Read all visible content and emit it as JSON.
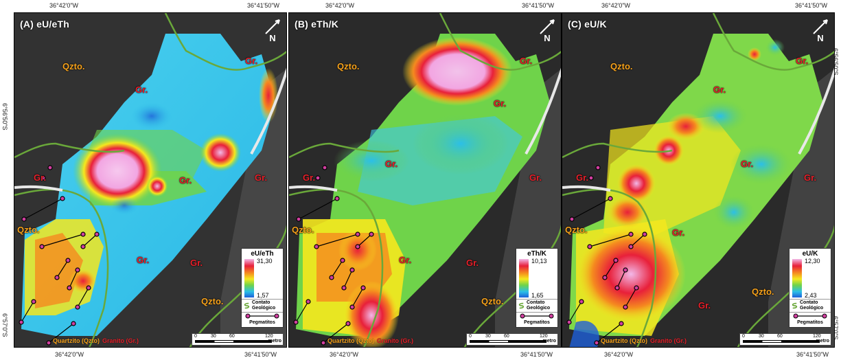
{
  "coords": {
    "top": [
      "36°42'0\"W",
      "36°41'50\"W",
      "36°42'0\"W",
      "36°41'50\"W",
      "36°42'0\"W",
      "36°41'50\"W"
    ],
    "bottom": [
      "36°42'0\"W",
      "36°41'50\"W",
      "36°42'0\"W",
      "36°41'50\"W",
      "36°42'0\"W",
      "36°41'50\"W"
    ],
    "left_upper": "6°56'50\"S",
    "left_lower": "6°57'0\"S",
    "right_upper": "6°56'50\"S",
    "right_lower": "6°57'0\"S"
  },
  "panels": [
    {
      "title": "(A)  eU/eTh",
      "legend_title": "eU/eTh",
      "legend_max": "31,30",
      "legend_min": "1,57"
    },
    {
      "title": "(B)  eTh/K",
      "legend_title": "eTh/K",
      "legend_max": "10,13",
      "legend_min": "1,65"
    },
    {
      "title": "(C)  eU/K",
      "legend_title": "eU/K",
      "legend_max": "12,30",
      "legend_min": "2,43"
    }
  ],
  "labels": {
    "qzto": "Qzto.",
    "gr": "Gr.",
    "north": "N",
    "contato": "Contato Geológico",
    "pegmatitos": "Pegmatitos",
    "quartzito": "Quartzito (Qzto)",
    "granito": "Granito (Gr.)"
  },
  "scale": {
    "ticks": [
      "0",
      "30",
      "60",
      "120"
    ],
    "unit": "metro"
  },
  "colors": {
    "ramp": [
      "#f2b8e8",
      "#e8203a",
      "#f58a1f",
      "#f5e81e",
      "#6fd34a",
      "#2bbfe8",
      "#1e5fd8"
    ],
    "quartzito": "#f7a21b",
    "granito": "#e8202a",
    "contact": "#6aa83a",
    "pegmatite": "#d23fa0"
  }
}
